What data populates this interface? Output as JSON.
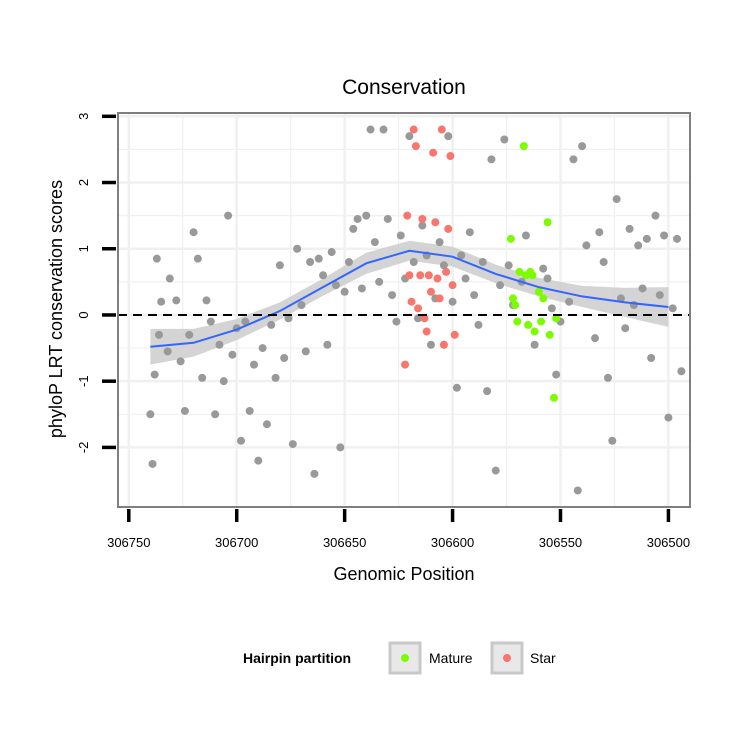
{
  "chart_data": {
    "type": "scatter",
    "title": "Conservation",
    "xlabel": "Genomic Position",
    "ylabel": "phyloP LRT conservation scores",
    "x_reversed": true,
    "xlim": [
      306755,
      306490
    ],
    "ylim": [
      -2.9,
      3.05
    ],
    "x_ticks": [
      306750,
      306700,
      306650,
      306600,
      306550,
      306500
    ],
    "x_tick_labels": [
      "306750",
      "306700",
      "306650",
      "306600",
      "306550",
      "306500"
    ],
    "y_ticks": [
      -2,
      -1,
      0,
      1,
      2,
      3
    ],
    "y_tick_labels": [
      "-2",
      "-1",
      "0",
      "1",
      "2",
      "3"
    ],
    "reference_line": {
      "y": 0,
      "style": "dashed",
      "color": "#000000"
    },
    "grid": true,
    "colors": {
      "other": "#999999",
      "mature": "#7CFC00",
      "star": "#F8766D",
      "smooth": "#3366FF",
      "band": "#CCCCCC",
      "border": "#7f7f7f",
      "grid": "#f0f0f0"
    },
    "legend": {
      "title": "Hairpin partition",
      "placement": "bottom",
      "entries": [
        {
          "label": "Mature",
          "series": "mature"
        },
        {
          "label": "Star",
          "series": "star"
        }
      ]
    },
    "smooth": {
      "x": [
        306740,
        306720,
        306700,
        306680,
        306660,
        306640,
        306620,
        306600,
        306580,
        306560,
        306540,
        306520,
        306500
      ],
      "y": [
        -0.48,
        -0.42,
        -0.22,
        0.06,
        0.42,
        0.78,
        0.97,
        0.88,
        0.62,
        0.42,
        0.28,
        0.19,
        0.12
      ],
      "lower": [
        -0.75,
        -0.63,
        -0.38,
        -0.07,
        0.29,
        0.62,
        0.82,
        0.73,
        0.48,
        0.28,
        0.12,
        -0.03,
        -0.18
      ],
      "upper": [
        -0.21,
        -0.21,
        -0.06,
        0.19,
        0.55,
        0.94,
        1.12,
        1.03,
        0.76,
        0.56,
        0.44,
        0.41,
        0.42
      ]
    },
    "series": [
      {
        "name": "Other",
        "points": [
          [
            306740,
            -1.5
          ],
          [
            306739,
            -2.25
          ],
          [
            306738,
            -0.9
          ],
          [
            306737,
            0.85
          ],
          [
            306736,
            -0.3
          ],
          [
            306735,
            0.2
          ],
          [
            306732,
            -0.55
          ],
          [
            306731,
            0.55
          ],
          [
            306728,
            0.22
          ],
          [
            306726,
            -0.7
          ],
          [
            306724,
            -1.45
          ],
          [
            306722,
            -0.3
          ],
          [
            306720,
            1.25
          ],
          [
            306718,
            0.85
          ],
          [
            306716,
            -0.95
          ],
          [
            306714,
            0.22
          ],
          [
            306712,
            -0.1
          ],
          [
            306710,
            -1.5
          ],
          [
            306708,
            -0.45
          ],
          [
            306706,
            -1.0
          ],
          [
            306704,
            1.5
          ],
          [
            306702,
            -0.6
          ],
          [
            306700,
            -0.2
          ],
          [
            306698,
            -1.9
          ],
          [
            306696,
            -0.1
          ],
          [
            306694,
            -1.45
          ],
          [
            306692,
            -0.75
          ],
          [
            306690,
            -2.2
          ],
          [
            306688,
            -0.5
          ],
          [
            306686,
            -1.65
          ],
          [
            306684,
            -0.15
          ],
          [
            306682,
            -0.95
          ],
          [
            306680,
            0.75
          ],
          [
            306678,
            -0.65
          ],
          [
            306676,
            -0.05
          ],
          [
            306674,
            -1.95
          ],
          [
            306672,
            1.0
          ],
          [
            306670,
            0.15
          ],
          [
            306668,
            -0.55
          ],
          [
            306666,
            0.8
          ],
          [
            306664,
            -2.4
          ],
          [
            306662,
            0.85
          ],
          [
            306660,
            0.6
          ],
          [
            306658,
            -0.45
          ],
          [
            306656,
            0.95
          ],
          [
            306654,
            0.45
          ],
          [
            306652,
            -2.0
          ],
          [
            306650,
            0.35
          ],
          [
            306648,
            0.8
          ],
          [
            306646,
            1.3
          ],
          [
            306644,
            1.45
          ],
          [
            306642,
            0.4
          ],
          [
            306640,
            1.5
          ],
          [
            306638,
            2.8
          ],
          [
            306636,
            1.1
          ],
          [
            306634,
            0.5
          ],
          [
            306632,
            2.8
          ],
          [
            306630,
            1.45
          ],
          [
            306628,
            0.3
          ],
          [
            306626,
            -0.1
          ],
          [
            306624,
            1.2
          ],
          [
            306622,
            0.55
          ],
          [
            306620,
            2.7
          ],
          [
            306618,
            0.8
          ],
          [
            306616,
            -0.05
          ],
          [
            306614,
            1.35
          ],
          [
            306612,
            0.9
          ],
          [
            306610,
            -0.45
          ],
          [
            306608,
            0.25
          ],
          [
            306606,
            1.1
          ],
          [
            306604,
            0.75
          ],
          [
            306602,
            2.7
          ],
          [
            306600,
            0.2
          ],
          [
            306598,
            -1.1
          ],
          [
            306596,
            0.9
          ],
          [
            306594,
            0.55
          ],
          [
            306592,
            1.25
          ],
          [
            306590,
            0.3
          ],
          [
            306588,
            -0.15
          ],
          [
            306586,
            0.8
          ],
          [
            306584,
            -1.15
          ],
          [
            306582,
            2.35
          ],
          [
            306580,
            -2.35
          ],
          [
            306578,
            0.45
          ],
          [
            306576,
            2.65
          ],
          [
            306574,
            0.75
          ],
          [
            306572,
            0.15
          ],
          [
            306568,
            0.5
          ],
          [
            306566,
            1.2
          ],
          [
            306562,
            -0.45
          ],
          [
            306558,
            0.7
          ],
          [
            306556,
            0.55
          ],
          [
            306554,
            0.1
          ],
          [
            306552,
            -0.9
          ],
          [
            306550,
            -0.1
          ],
          [
            306546,
            0.2
          ],
          [
            306544,
            2.35
          ],
          [
            306542,
            -2.65
          ],
          [
            306540,
            2.55
          ],
          [
            306538,
            1.05
          ],
          [
            306534,
            -0.35
          ],
          [
            306532,
            1.25
          ],
          [
            306530,
            0.8
          ],
          [
            306528,
            -0.95
          ],
          [
            306526,
            -1.9
          ],
          [
            306524,
            1.75
          ],
          [
            306522,
            0.25
          ],
          [
            306520,
            -0.2
          ],
          [
            306518,
            1.3
          ],
          [
            306516,
            0.15
          ],
          [
            306514,
            1.05
          ],
          [
            306512,
            0.4
          ],
          [
            306510,
            1.15
          ],
          [
            306508,
            -0.65
          ],
          [
            306506,
            1.5
          ],
          [
            306504,
            0.3
          ],
          [
            306502,
            1.2
          ],
          [
            306500,
            -1.55
          ],
          [
            306498,
            0.1
          ],
          [
            306496,
            1.15
          ],
          [
            306494,
            -0.85
          ]
        ]
      },
      {
        "name": "Mature",
        "points": [
          [
            306573,
            1.15
          ],
          [
            306572,
            0.25
          ],
          [
            306571,
            0.15
          ],
          [
            306570,
            -0.1
          ],
          [
            306569,
            0.65
          ],
          [
            306567,
            2.55
          ],
          [
            306566,
            0.6
          ],
          [
            306565,
            -0.15
          ],
          [
            306564,
            0.65
          ],
          [
            306563,
            0.6
          ],
          [
            306562,
            -0.25
          ],
          [
            306560,
            0.35
          ],
          [
            306559,
            -0.1
          ],
          [
            306558,
            0.25
          ],
          [
            306556,
            1.4
          ],
          [
            306555,
            -0.3
          ],
          [
            306553,
            -1.25
          ],
          [
            306552,
            -0.05
          ]
        ]
      },
      {
        "name": "Star",
        "points": [
          [
            306622,
            -0.75
          ],
          [
            306621,
            1.5
          ],
          [
            306620,
            0.6
          ],
          [
            306619,
            0.2
          ],
          [
            306618,
            2.8
          ],
          [
            306617,
            2.55
          ],
          [
            306616,
            0.1
          ],
          [
            306615,
            0.6
          ],
          [
            306614,
            1.45
          ],
          [
            306613,
            -0.05
          ],
          [
            306612,
            -0.25
          ],
          [
            306611,
            0.6
          ],
          [
            306610,
            0.35
          ],
          [
            306609,
            2.45
          ],
          [
            306608,
            1.4
          ],
          [
            306607,
            0.55
          ],
          [
            306606,
            0.25
          ],
          [
            306605,
            2.8
          ],
          [
            306604,
            -0.45
          ],
          [
            306603,
            0.65
          ],
          [
            306602,
            1.3
          ],
          [
            306601,
            2.4
          ],
          [
            306600,
            0.45
          ],
          [
            306599,
            -0.3
          ]
        ]
      }
    ]
  }
}
